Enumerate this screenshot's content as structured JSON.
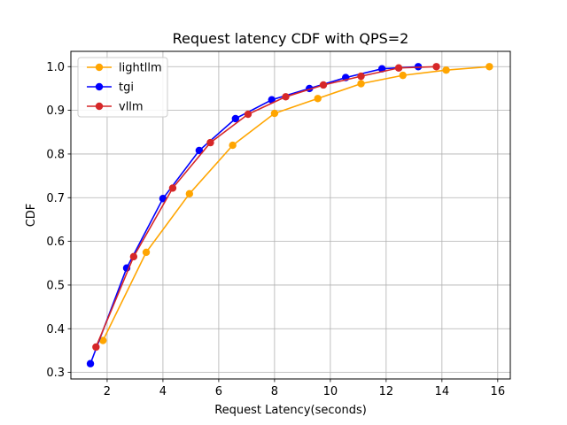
{
  "chart_data": {
    "type": "line",
    "title": "Request latency CDF with QPS=2",
    "xlabel": "Request Latency(seconds)",
    "ylabel": "CDF",
    "xlim": [
      0.7,
      16.45
    ],
    "ylim": [
      0.285,
      1.035
    ],
    "xticks": [
      2,
      4,
      6,
      8,
      10,
      12,
      14,
      16
    ],
    "yticks": [
      0.3,
      0.4,
      0.5,
      0.6,
      0.7,
      0.8,
      0.9,
      1.0
    ],
    "grid": true,
    "legend_position": "top-left",
    "series": [
      {
        "name": "lightllm",
        "color": "#ffa500",
        "x": [
          1.85,
          3.4,
          4.95,
          6.5,
          8.0,
          9.55,
          11.1,
          12.6,
          14.15,
          15.7
        ],
        "y": [
          0.373,
          0.575,
          0.709,
          0.82,
          0.893,
          0.927,
          0.961,
          0.98,
          0.992,
          1.0
        ]
      },
      {
        "name": "tgi",
        "color": "#0000ff",
        "x": [
          1.4,
          2.7,
          4.0,
          5.3,
          6.6,
          7.9,
          9.25,
          10.55,
          11.85,
          13.15
        ],
        "y": [
          0.32,
          0.539,
          0.698,
          0.808,
          0.881,
          0.924,
          0.95,
          0.975,
          0.995,
          1.0
        ]
      },
      {
        "name": "vllm",
        "color": "#d62728",
        "x": [
          1.6,
          2.95,
          4.35,
          5.7,
          7.05,
          8.4,
          9.75,
          11.1,
          12.45,
          13.8
        ],
        "y": [
          0.358,
          0.565,
          0.722,
          0.826,
          0.891,
          0.931,
          0.958,
          0.978,
          0.997,
          1.0
        ]
      }
    ]
  }
}
